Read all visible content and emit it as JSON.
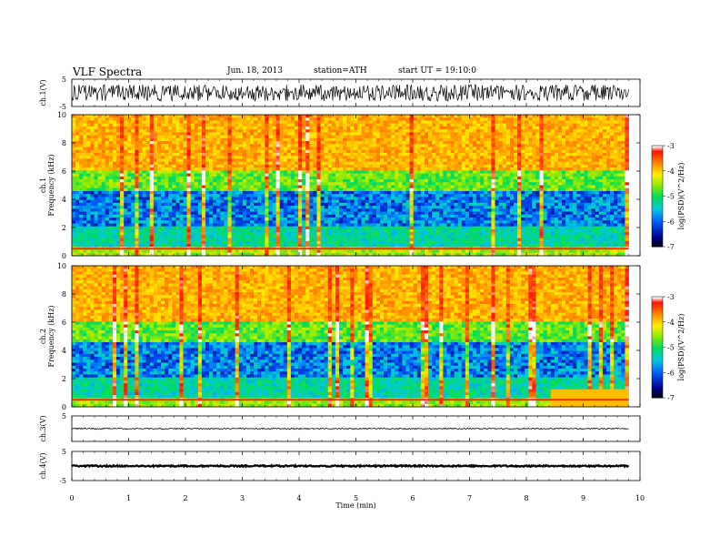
{
  "header": {
    "title": "VLF  Spectra",
    "date": "Jun. 18, 2013",
    "station": "station=ATH",
    "start": "start  UT  =    19:10:0"
  },
  "chart_data": [
    {
      "type": "line",
      "ylabel": "ch.1(V)",
      "ylim": [
        -5,
        5
      ],
      "yticks": [
        "5",
        "-5"
      ],
      "description_level": "dense noisy waveform around 0 V, roughly ±2.5 V"
    },
    {
      "type": "heatmap",
      "ylabel": "ch.1\nFrequency (kHz)",
      "ylim": [
        0,
        10
      ],
      "yticks": [
        "0",
        "2",
        "4",
        "6",
        "8",
        "10"
      ],
      "colorbar": {
        "label": "log(PSD)(V^2/Hz)",
        "range": [
          -7,
          -3
        ],
        "ticks": [
          "-3",
          "-4",
          "-5",
          "-6",
          "-7"
        ]
      }
    },
    {
      "type": "heatmap",
      "ylabel": "ch.2\nFrequency (kHz)",
      "ylim": [
        0,
        10
      ],
      "yticks": [
        "0",
        "2",
        "4",
        "6",
        "8",
        "10"
      ],
      "colorbar": {
        "label": "log(PSD)(V^2/Hz)",
        "range": [
          -7,
          -3
        ],
        "ticks": [
          "-3",
          "-4",
          "-5",
          "-6",
          "-7"
        ]
      }
    },
    {
      "type": "line",
      "ylabel": "ch.3(V)",
      "ylim": [
        -5,
        5
      ],
      "yticks": [
        "5"
      ],
      "description_level": "flat trace near 0 V"
    },
    {
      "type": "line",
      "ylabel": "ch.4(V)",
      "ylim": [
        -5,
        5
      ],
      "yticks": [
        "5",
        "-5"
      ],
      "description_level": "flat thick trace near 0 V"
    }
  ],
  "xaxis": {
    "xlabel": "Time  (min)",
    "xlim": [
      0,
      10
    ],
    "ticks": [
      "0",
      "1",
      "2",
      "3",
      "4",
      "5",
      "6",
      "7",
      "8",
      "9",
      "10"
    ],
    "data_end": 9.8
  },
  "colors": {
    "high": "#ff2a00",
    "mid": "#ffee00",
    "low": "#00e060",
    "lowest": "#0030c0"
  }
}
